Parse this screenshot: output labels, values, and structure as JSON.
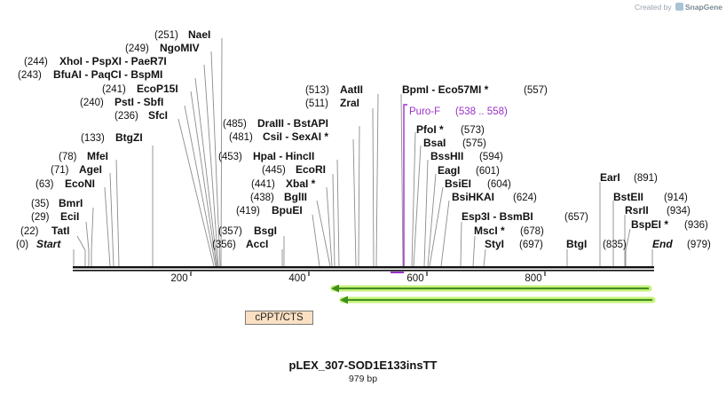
{
  "credit": {
    "prefix": "Created by",
    "brand": "SnapGene"
  },
  "map_title": "pLEX_307-SOD1E133insTT",
  "map_subtitle": "979 bp",
  "ticks": [
    "200",
    "400",
    "600",
    "800"
  ],
  "feature_label": "cPPT/CTS",
  "primer": {
    "name": "Puro-F",
    "range": "(538 .. 558)"
  },
  "sites": [
    {
      "pos": "(0)",
      "name": "Start"
    },
    {
      "pos": "(22)",
      "name": "TatI"
    },
    {
      "pos": "(29)",
      "name": "EciI"
    },
    {
      "pos": "(35)",
      "name": "BmrI"
    },
    {
      "pos": "(63)",
      "name": "EcoNI"
    },
    {
      "pos": "(71)",
      "name": "AgeI"
    },
    {
      "pos": "(78)",
      "name": "MfeI"
    },
    {
      "pos": "(133)",
      "name": "BtgZI"
    },
    {
      "pos": "(236)",
      "name": "SfcI"
    },
    {
      "pos": "(240)",
      "name": "PstI - SbfI"
    },
    {
      "pos": "(241)",
      "name": "EcoP15I"
    },
    {
      "pos": "(243)",
      "name": "BfuAI - PaqCI - BspMI"
    },
    {
      "pos": "(244)",
      "name": "XhoI - PspXI - PaeR7I"
    },
    {
      "pos": "(249)",
      "name": "NgoMIV"
    },
    {
      "pos": "(251)",
      "name": "NaeI"
    },
    {
      "pos": "(356)",
      "name": "AccI"
    },
    {
      "pos": "(357)",
      "name": "BsgI"
    },
    {
      "pos": "(419)",
      "name": "BpuEI"
    },
    {
      "pos": "(438)",
      "name": "BglII"
    },
    {
      "pos": "(441)",
      "name": "XbaI *"
    },
    {
      "pos": "(445)",
      "name": "EcoRI"
    },
    {
      "pos": "(453)",
      "name": "HpaI - HincII"
    },
    {
      "pos": "(481)",
      "name": "CsiI - SexAI *"
    },
    {
      "pos": "(485)",
      "name": "DraIII - BstAPI"
    },
    {
      "pos": "(511)",
      "name": "ZraI"
    },
    {
      "pos": "(513)",
      "name": "AatII"
    },
    {
      "pos": "(557)",
      "name": "BpmI - Eco57MI *"
    },
    {
      "pos": "(573)",
      "name": "PfoI *"
    },
    {
      "pos": "(575)",
      "name": "BsaI"
    },
    {
      "pos": "(594)",
      "name": "BssHII"
    },
    {
      "pos": "(601)",
      "name": "EagI"
    },
    {
      "pos": "(604)",
      "name": "BsiEI"
    },
    {
      "pos": "(624)",
      "name": "BsiHKAI"
    },
    {
      "pos": "(657)",
      "name": "Esp3I - BsmBI"
    },
    {
      "pos": "(678)",
      "name": "MscI *"
    },
    {
      "pos": "(697)",
      "name": "StyI"
    },
    {
      "pos": "(835)",
      "name": "BtgI"
    },
    {
      "pos": "(891)",
      "name": "EarI"
    },
    {
      "pos": "(914)",
      "name": "BstEII"
    },
    {
      "pos": "(934)",
      "name": "RsrII"
    },
    {
      "pos": "(936)",
      "name": "BspEI *"
    },
    {
      "pos": "(979)",
      "name": "End"
    }
  ],
  "colors": {
    "primer": "#9b30c8",
    "arrow_glow": "#c6f07a",
    "arrow_line": "#3f8f1f",
    "feature_fill": "#fbe0c3"
  }
}
